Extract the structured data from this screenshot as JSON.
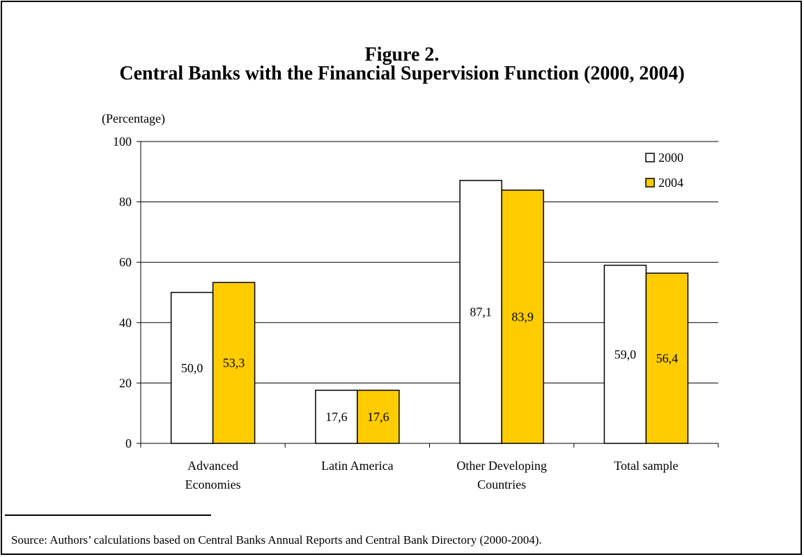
{
  "figure": {
    "number_label": "Figure 2.",
    "title": "Central Banks with the Financial Supervision Function (2000, 2004)"
  },
  "chart_data": {
    "type": "bar",
    "ylabel": "(Percentage)",
    "ylim": [
      0,
      100
    ],
    "yticks": [
      "0",
      "20",
      "40",
      "60",
      "80",
      "100"
    ],
    "ytick_values": [
      0,
      20,
      40,
      60,
      80,
      100
    ],
    "grid": true,
    "legend_position": "top-right",
    "categories": [
      [
        "Advanced",
        "Economies"
      ],
      [
        "Latin America"
      ],
      [
        "Other Developing",
        "Countries"
      ],
      [
        "Total sample"
      ]
    ],
    "series": [
      {
        "name": "2000",
        "color": "#ffffff",
        "values": [
          50.0,
          17.6,
          87.1,
          59.0
        ],
        "labels": [
          "50,0",
          "17,6",
          "87,1",
          "59,0"
        ]
      },
      {
        "name": "2004",
        "color": "#ffcc00",
        "values": [
          53.3,
          17.6,
          83.9,
          56.4
        ],
        "labels": [
          "53,3",
          "17,6",
          "83,9",
          "56,4"
        ]
      }
    ]
  },
  "footnote": {
    "source": "Source: Authors’ calculations based on Central Banks Annual Reports and Central Bank Directory (2000-2004)."
  }
}
